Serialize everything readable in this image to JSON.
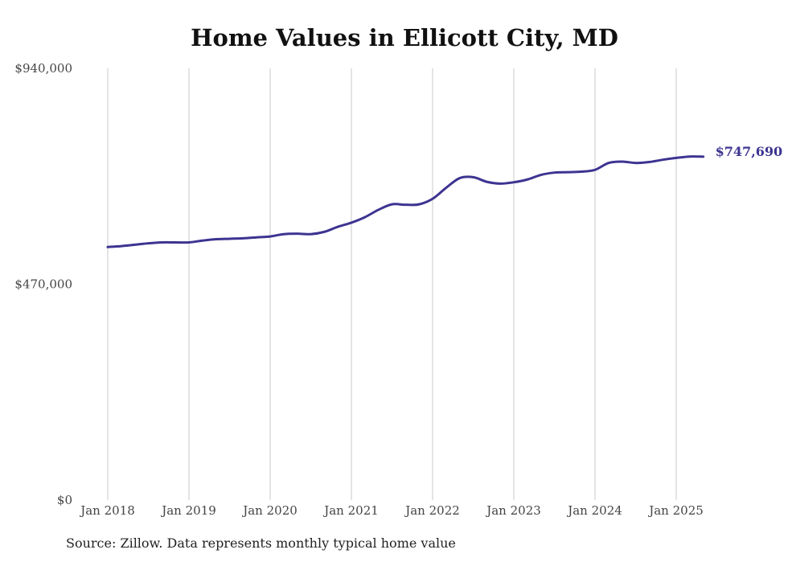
{
  "chart_data": {
    "type": "line",
    "title": "Home Values in Ellicott City, MD",
    "source": "Source: Zillow. Data represents monthly typical home value",
    "xlabel": "",
    "ylabel": "",
    "x_ticks": [
      "Jan 2018",
      "Jan 2019",
      "Jan 2020",
      "Jan 2021",
      "Jan 2022",
      "Jan 2023",
      "Jan 2024",
      "Jan 2025"
    ],
    "y_ticks": [
      {
        "value": 0,
        "label": "$0"
      },
      {
        "value": 470000,
        "label": "$470,000"
      },
      {
        "value": 940000,
        "label": "$940,000"
      }
    ],
    "ylim": [
      0,
      940000
    ],
    "xlim": [
      "2018-01",
      "2025-12"
    ],
    "grid": "vertical",
    "end_label": "$747,690",
    "color": "#3d3491",
    "series": [
      {
        "points": [
          [
            "2018-01",
            551000
          ],
          [
            "2018-03",
            553000
          ],
          [
            "2018-05",
            556000
          ],
          [
            "2018-07",
            559000
          ],
          [
            "2018-09",
            561000
          ],
          [
            "2018-11",
            561000
          ],
          [
            "2019-01",
            561000
          ],
          [
            "2019-03",
            565000
          ],
          [
            "2019-05",
            568000
          ],
          [
            "2019-07",
            569000
          ],
          [
            "2019-09",
            570000
          ],
          [
            "2019-11",
            572000
          ],
          [
            "2020-01",
            574000
          ],
          [
            "2020-03",
            579000
          ],
          [
            "2020-05",
            580000
          ],
          [
            "2020-07",
            579000
          ],
          [
            "2020-09",
            584000
          ],
          [
            "2020-11",
            595000
          ],
          [
            "2021-01",
            604000
          ],
          [
            "2021-03",
            616000
          ],
          [
            "2021-05",
            632000
          ],
          [
            "2021-07",
            644000
          ],
          [
            "2021-09",
            643000
          ],
          [
            "2021-11",
            644000
          ],
          [
            "2022-01",
            656000
          ],
          [
            "2022-03",
            680000
          ],
          [
            "2022-05",
            701000
          ],
          [
            "2022-07",
            703000
          ],
          [
            "2022-09",
            693000
          ],
          [
            "2022-11",
            689000
          ],
          [
            "2023-01",
            692000
          ],
          [
            "2023-03",
            698000
          ],
          [
            "2023-05",
            708000
          ],
          [
            "2023-07",
            713000
          ],
          [
            "2023-09",
            714000
          ],
          [
            "2023-11",
            715000
          ],
          [
            "2024-01",
            719000
          ],
          [
            "2024-03",
            734000
          ],
          [
            "2024-05",
            737000
          ],
          [
            "2024-07",
            734000
          ],
          [
            "2024-09",
            736000
          ],
          [
            "2024-11",
            741000
          ],
          [
            "2025-01",
            745000
          ],
          [
            "2025-03",
            748000
          ],
          [
            "2025-05",
            747690
          ]
        ]
      }
    ]
  }
}
